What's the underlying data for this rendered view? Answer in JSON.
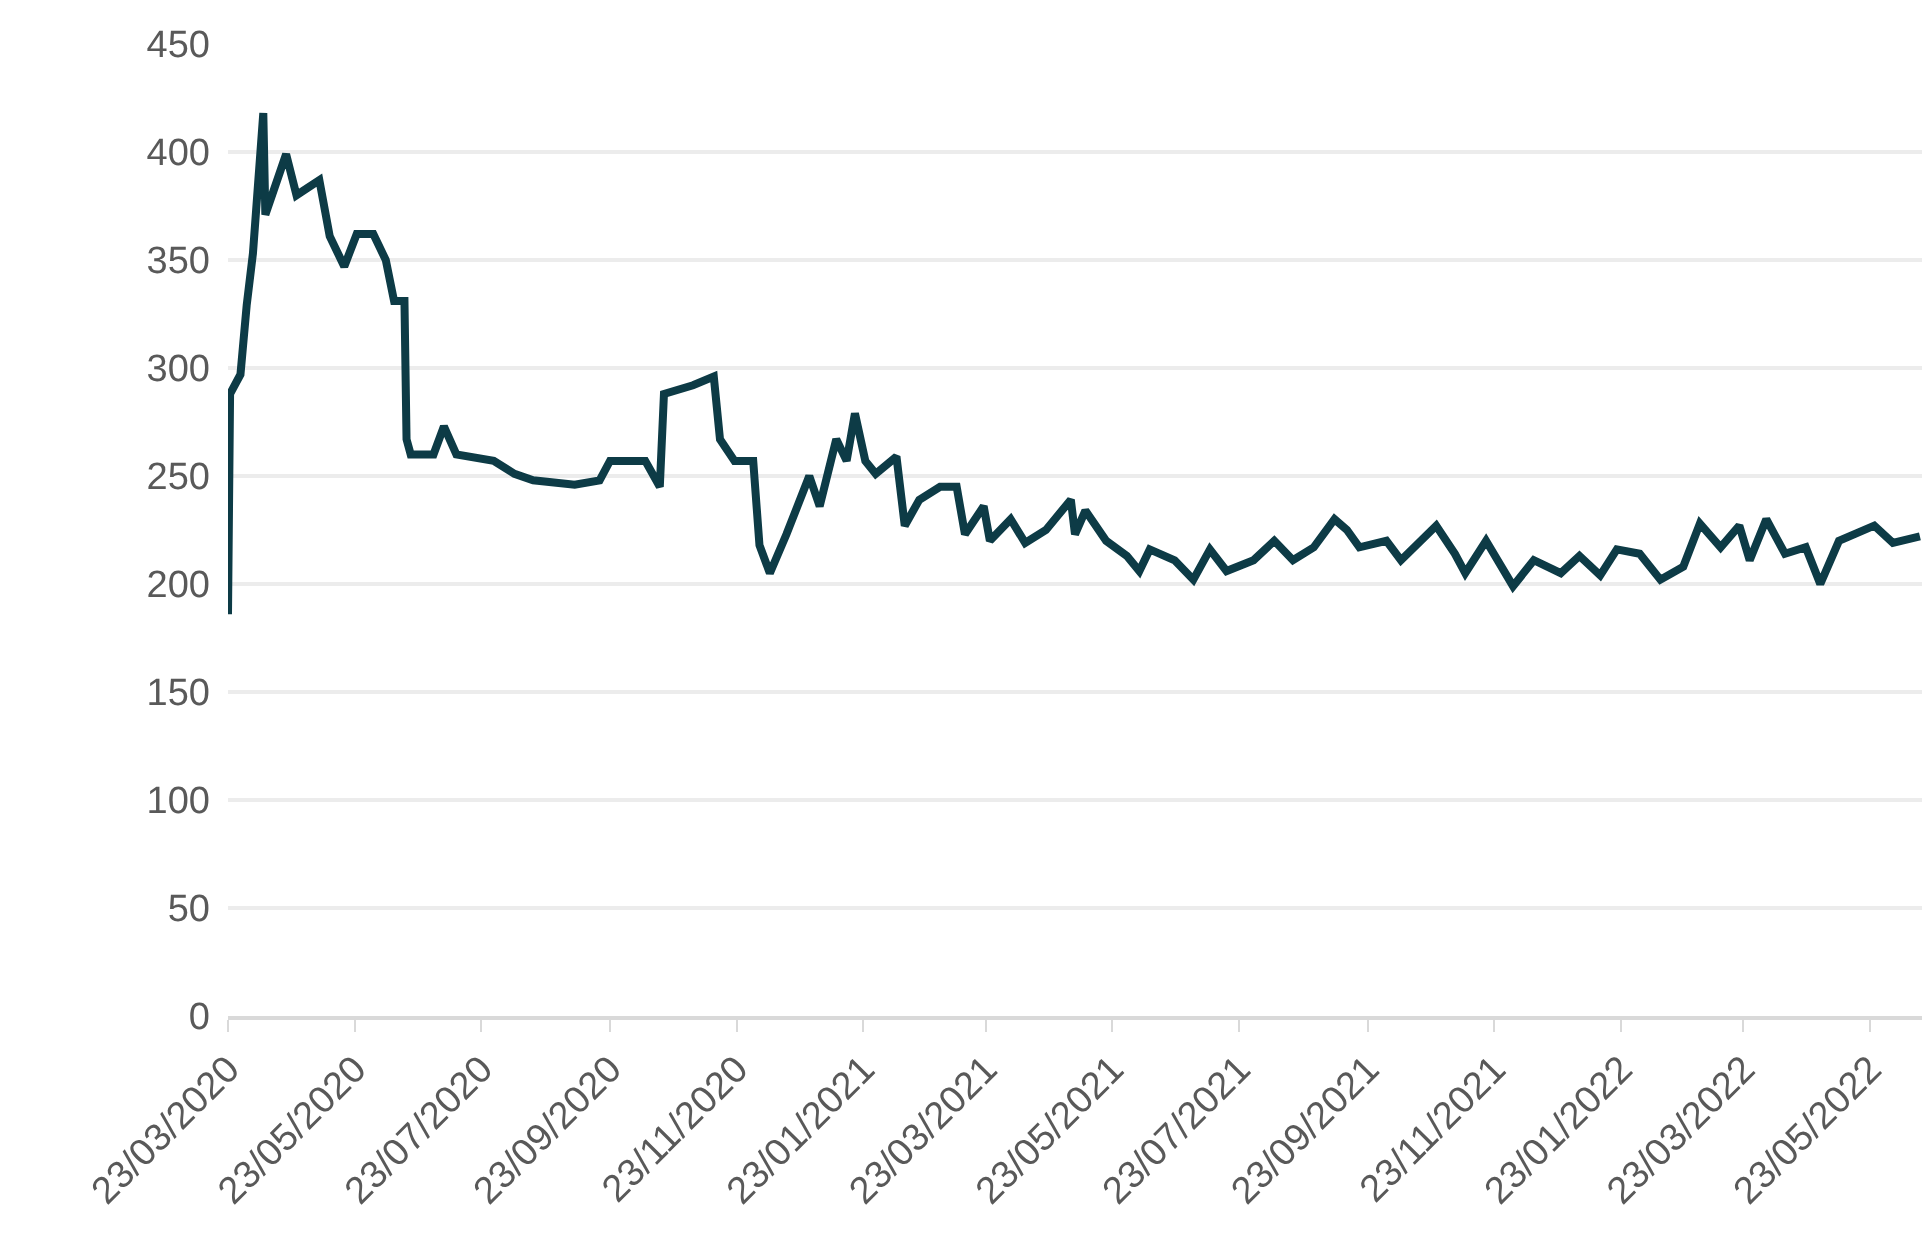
{
  "chart_data": {
    "type": "line",
    "x": [
      "2020-03-23",
      "2020-03-24",
      "2020-03-29",
      "2020-04-01",
      "2020-04-04",
      "2020-04-09",
      "2020-04-10",
      "2020-04-20",
      "2020-04-25",
      "2020-05-06",
      "2020-05-11",
      "2020-05-18",
      "2020-05-24",
      "2020-06-01",
      "2020-06-07",
      "2020-06-11",
      "2020-06-16",
      "2020-06-17",
      "2020-06-19",
      "2020-06-30",
      "2020-07-05",
      "2020-07-11",
      "2020-07-29",
      "2020-08-08",
      "2020-08-17",
      "2020-09-06",
      "2020-09-18",
      "2020-09-23",
      "2020-10-10",
      "2020-10-17",
      "2020-10-19",
      "2020-11-02",
      "2020-11-12",
      "2020-11-15",
      "2020-11-22",
      "2020-12-01",
      "2020-12-04",
      "2020-12-09",
      "2020-12-17",
      "2020-12-28",
      "2021-01-02",
      "2021-01-10",
      "2021-01-15",
      "2021-01-19",
      "2021-01-24",
      "2021-01-29",
      "2021-02-08",
      "2021-02-12",
      "2021-02-19",
      "2021-03-01",
      "2021-03-09",
      "2021-03-13",
      "2021-03-22",
      "2021-03-25",
      "2021-04-04",
      "2021-04-11",
      "2021-04-21",
      "2021-05-03",
      "2021-05-05",
      "2021-05-10",
      "2021-05-20",
      "2021-05-30",
      "2021-06-05",
      "2021-06-10",
      "2021-06-22",
      "2021-07-01",
      "2021-07-09",
      "2021-07-17",
      "2021-07-30",
      "2021-08-09",
      "2021-08-18",
      "2021-08-28",
      "2021-09-07",
      "2021-09-13",
      "2021-09-19",
      "2021-10-02",
      "2021-10-09",
      "2021-10-26",
      "2021-11-04",
      "2021-11-09",
      "2021-11-19",
      "2021-12-02",
      "2021-12-12",
      "2021-12-25",
      "2022-01-03",
      "2022-01-13",
      "2022-01-21",
      "2022-02-01",
      "2022-02-11",
      "2022-02-22",
      "2022-03-02",
      "2022-03-12",
      "2022-03-21",
      "2022-03-26",
      "2022-04-03",
      "2022-04-12",
      "2022-04-22",
      "2022-04-29",
      "2022-05-08",
      "2022-05-25",
      "2022-06-03",
      "2022-06-16"
    ],
    "series": [
      {
        "color": "#0d3b46",
        "values": [
          186,
          288,
          297,
          329,
          353,
          418,
          371,
          399,
          380,
          387,
          361,
          347,
          362,
          362,
          350,
          331,
          331,
          267,
          260,
          260,
          273,
          260,
          257,
          251,
          248,
          246,
          248,
          257,
          257,
          245,
          288,
          292,
          296,
          267,
          257,
          257,
          218,
          205,
          223,
          250,
          236,
          267,
          257,
          279,
          257,
          251,
          259,
          227,
          239,
          245,
          245,
          223,
          236,
          220,
          230,
          219,
          225,
          239,
          223,
          234,
          220,
          213,
          206,
          216,
          211,
          202,
          216,
          206,
          211,
          220,
          211,
          217,
          230,
          225,
          217,
          220,
          211,
          227,
          214,
          205,
          220,
          199,
          211,
          205,
          213,
          204,
          216,
          214,
          202,
          208,
          228,
          217,
          227,
          211,
          230,
          214,
          217,
          200,
          220,
          227,
          219,
          222
        ]
      }
    ],
    "xlim": [
      "2020-03-23",
      "2022-06-17"
    ],
    "xticks": [
      {
        "value": "2020-03-23",
        "label": "23/03/2020"
      },
      {
        "value": "2020-05-23",
        "label": "23/05/2020"
      },
      {
        "value": "2020-07-23",
        "label": "23/07/2020"
      },
      {
        "value": "2020-09-23",
        "label": "23/09/2020"
      },
      {
        "value": "2020-11-23",
        "label": "23/11/2020"
      },
      {
        "value": "2021-01-23",
        "label": "23/01/2021"
      },
      {
        "value": "2021-03-23",
        "label": "23/03/2021"
      },
      {
        "value": "2021-05-23",
        "label": "23/05/2021"
      },
      {
        "value": "2021-07-23",
        "label": "23/07/2021"
      },
      {
        "value": "2021-09-23",
        "label": "23/09/2021"
      },
      {
        "value": "2021-11-23",
        "label": "23/11/2021"
      },
      {
        "value": "2022-01-23",
        "label": "23/01/2022"
      },
      {
        "value": "2022-03-23",
        "label": "23/03/2022"
      },
      {
        "value": "2022-05-23",
        "label": "23/05/2022"
      }
    ],
    "ylim": [
      0,
      450
    ],
    "yticks": [
      0,
      50,
      100,
      150,
      200,
      250,
      300,
      350,
      400,
      450
    ],
    "grid": "y",
    "marker": "none",
    "line_style": "solid"
  }
}
